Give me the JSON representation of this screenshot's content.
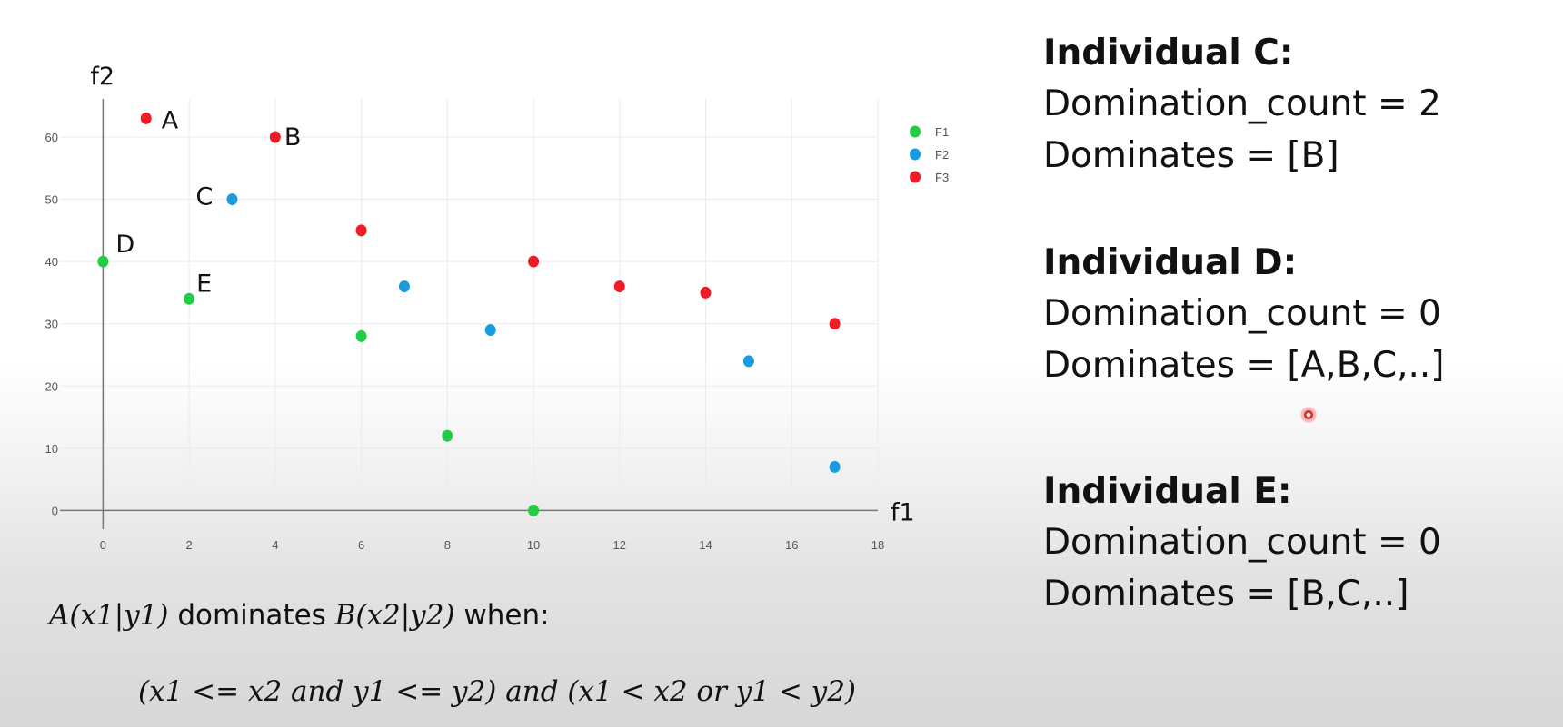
{
  "chart_data": {
    "type": "scatter",
    "xlabel": "f1",
    "ylabel": "f2",
    "xlim": [
      -1,
      18
    ],
    "ylim": [
      -3,
      67
    ],
    "x_ticks": [
      0,
      2,
      4,
      6,
      8,
      10,
      12,
      14,
      16,
      18
    ],
    "y_ticks": [
      0,
      10,
      20,
      30,
      40,
      50,
      60
    ],
    "grid": true,
    "legend_position": "top-right",
    "series": [
      {
        "name": "F1",
        "color": "#22cc44",
        "points": [
          [
            0,
            40
          ],
          [
            2,
            34
          ],
          [
            6,
            28
          ],
          [
            8,
            12
          ],
          [
            10,
            0
          ]
        ]
      },
      {
        "name": "F2",
        "color": "#1a9be0",
        "points": [
          [
            3,
            50
          ],
          [
            7,
            36
          ],
          [
            9,
            29
          ],
          [
            15,
            24
          ],
          [
            17,
            7
          ]
        ]
      },
      {
        "name": "F3",
        "color": "#ee1c24",
        "points": [
          [
            1,
            63
          ],
          [
            4,
            60
          ],
          [
            6,
            45
          ],
          [
            10,
            40
          ],
          [
            12,
            36
          ],
          [
            14,
            35
          ],
          [
            17,
            30
          ]
        ]
      }
    ],
    "annotations": [
      {
        "text": "A",
        "x": 1,
        "y": 63
      },
      {
        "text": "B",
        "x": 4,
        "y": 60
      },
      {
        "text": "C",
        "x": 3,
        "y": 50
      },
      {
        "text": "D",
        "x": 0,
        "y": 40
      },
      {
        "text": "E",
        "x": 2,
        "y": 34
      }
    ]
  },
  "panels": [
    {
      "title": "Individual C:",
      "count": "Domination_count = 2",
      "dominates": "Dominates = [B]"
    },
    {
      "title": "Individual D:",
      "count": "Domination_count = 0",
      "dominates": "Dominates = [A,B,C,..]"
    },
    {
      "title": "Individual E:",
      "count": "Domination_count = 0",
      "dominates": "Dominates = [B,C,..]"
    }
  ],
  "rule": {
    "a_term": "A(x1|y1)",
    "dominates_word": " dominates ",
    "b_term": "B(x2|y2)",
    "when_word": " when:",
    "condition": "(x1 <= x2 and y1 <= y2) and (x1 < x2 or y1 < y2)"
  }
}
